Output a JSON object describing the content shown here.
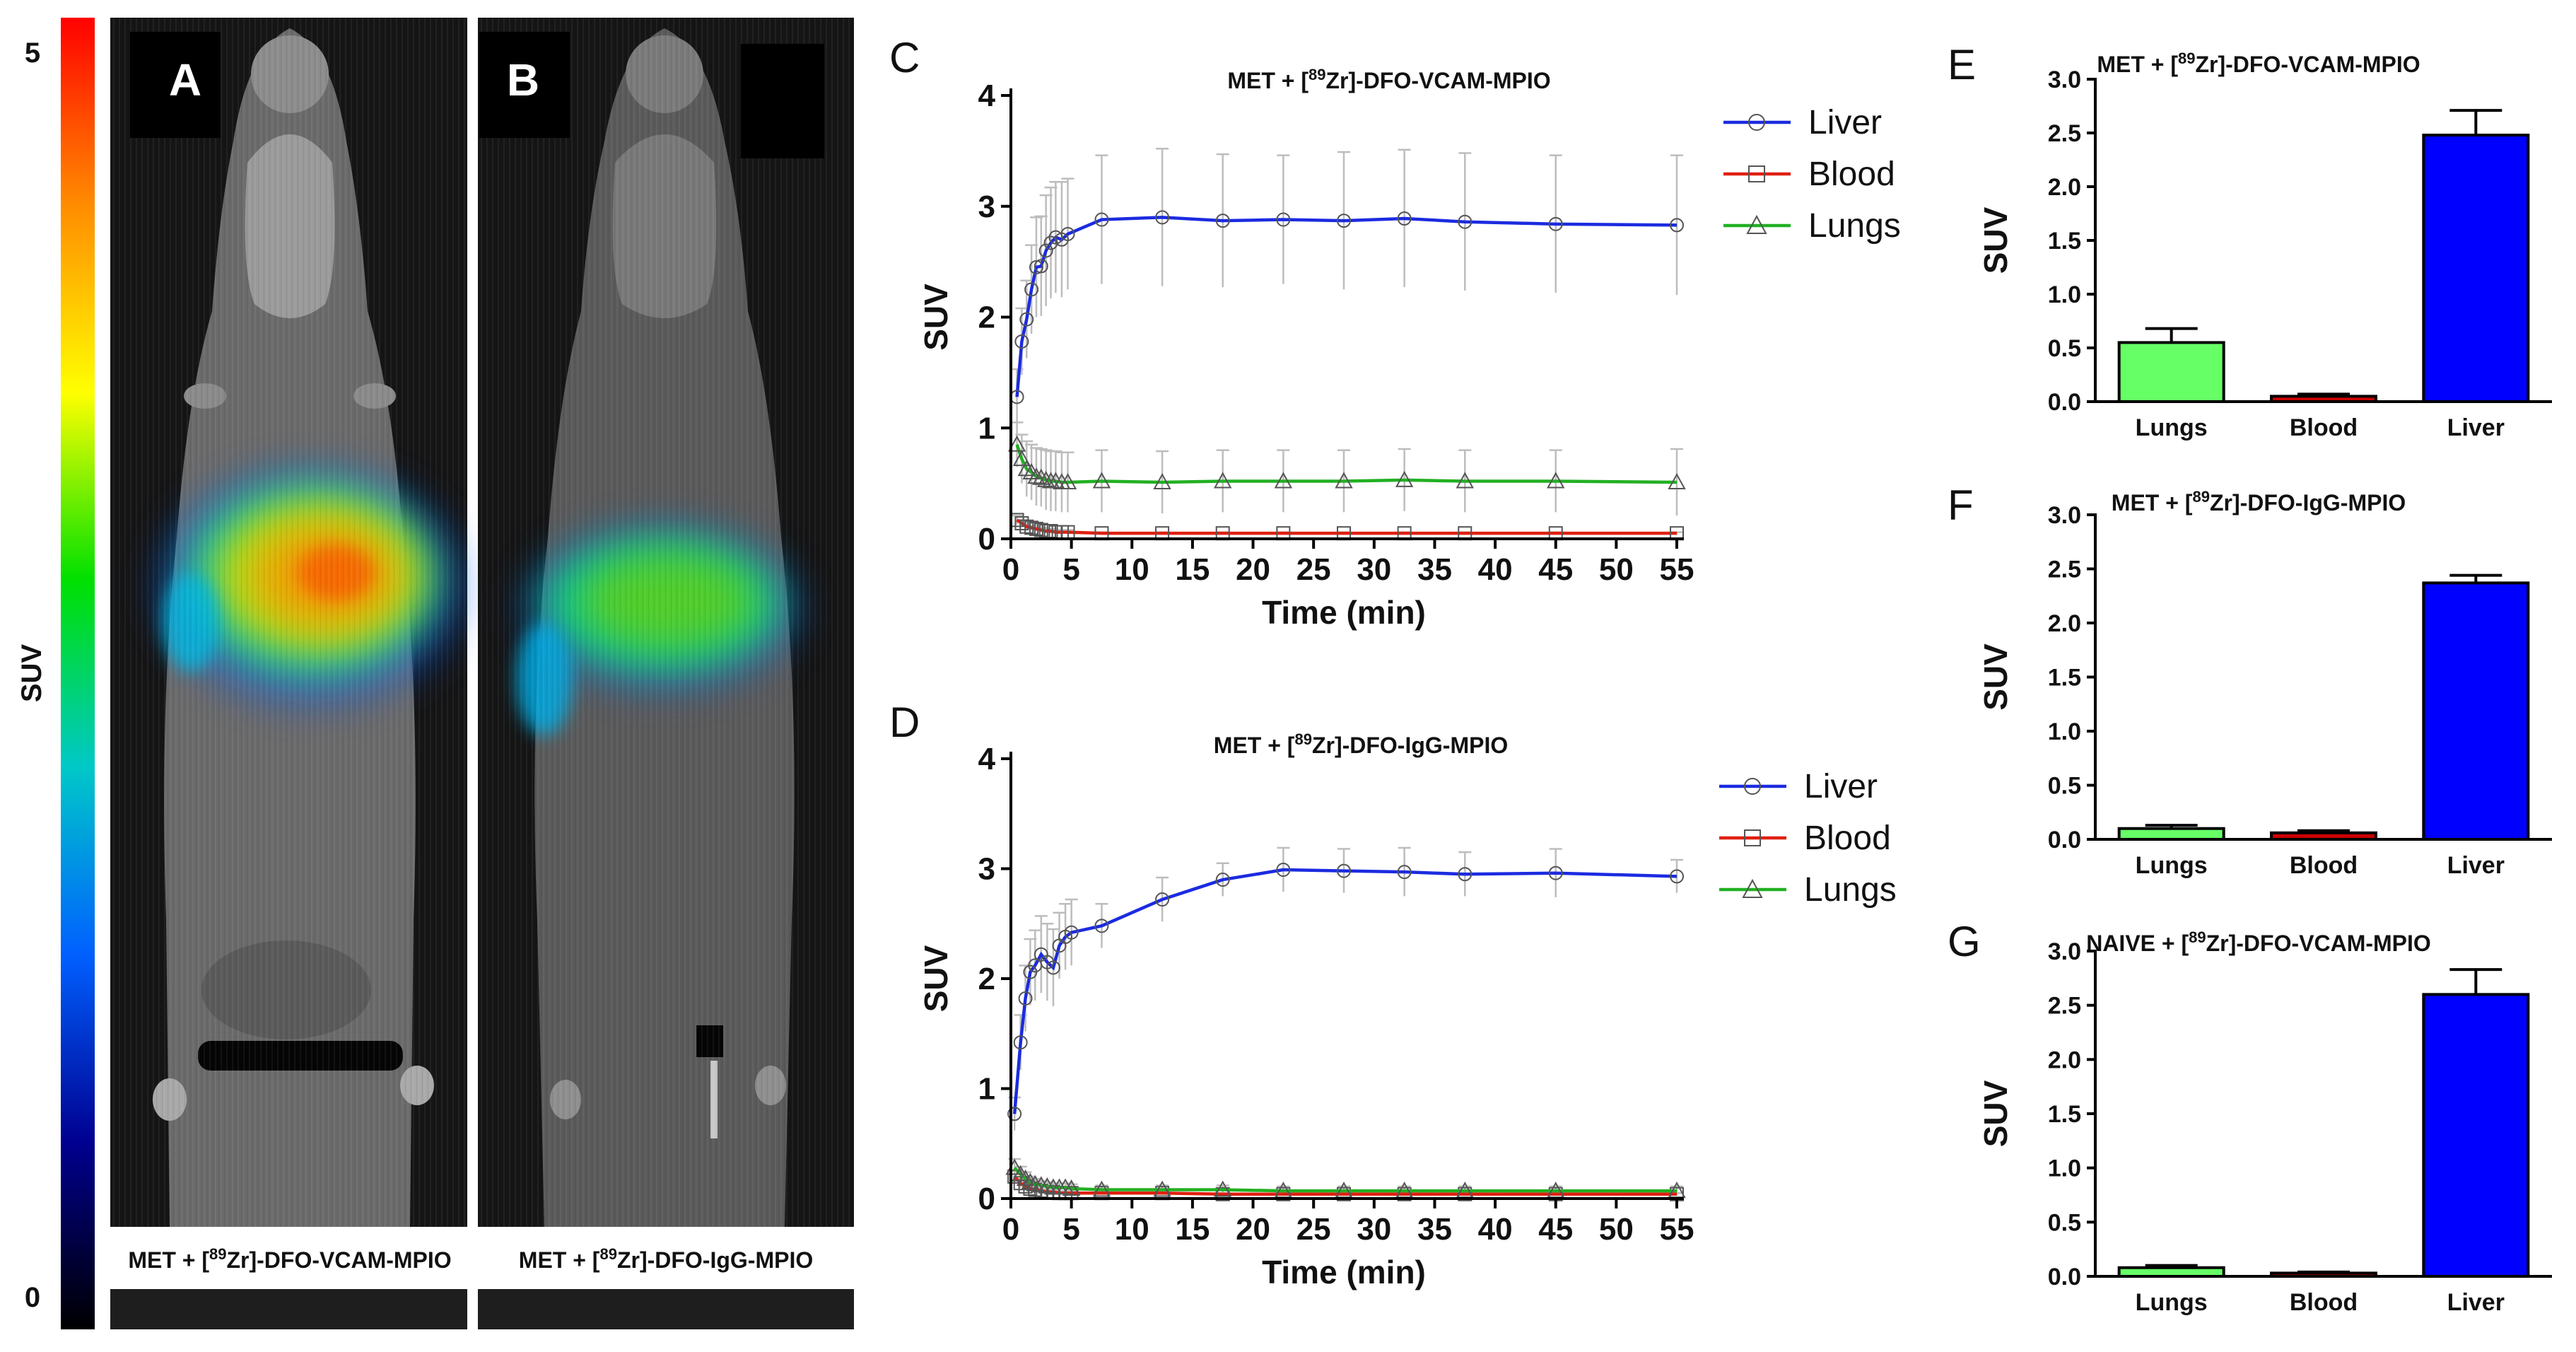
{
  "colorbar": {
    "label": "SUV",
    "max_label": "5",
    "min_label": "0",
    "colors": [
      "#ff0000",
      "#ff8c00",
      "#ffff00",
      "#00e000",
      "#00c8c8",
      "#0060ff",
      "#000090",
      "#000000"
    ]
  },
  "images": [
    {
      "letter": "A",
      "caption_pre": "MET + [",
      "caption_sup": "89",
      "caption_post": "Zr]-DFO-VCAM-MPIO"
    },
    {
      "letter": "B",
      "caption_pre": "MET + [",
      "caption_sup": "89",
      "caption_post": "Zr]-DFO-IgG-MPIO"
    }
  ],
  "colors": {
    "liver": "#1b2be0",
    "blood": "#e02010",
    "lungs": "#22b022",
    "error": "#bdbdbd",
    "bar_lungs": "#66ff66",
    "bar_blood": "#cc0000",
    "bar_liver": "#0000ff"
  },
  "chart_data": [
    {
      "panel": "C",
      "type": "line",
      "title_pre": "MET + [",
      "title_sup": "89",
      "title_post": "Zr]-DFO-VCAM-MPIO",
      "xlabel": "Time (min)",
      "ylabel": "SUV",
      "xlim": [
        0,
        55
      ],
      "ylim": [
        0,
        4
      ],
      "xticks": [
        0,
        5,
        10,
        15,
        20,
        25,
        30,
        35,
        40,
        45,
        50,
        55
      ],
      "yticks": [
        0,
        1,
        2,
        3,
        4
      ],
      "legend_position": "top-right",
      "series": [
        {
          "name": "Liver",
          "key": "liver",
          "marker": "circle",
          "x": [
            0.5,
            0.9,
            1.3,
            1.7,
            2.1,
            2.5,
            2.9,
            3.3,
            3.7,
            4.2,
            4.7,
            7.5,
            12.5,
            17.5,
            22.5,
            27.5,
            32.5,
            37.5,
            45,
            55
          ],
          "y": [
            1.28,
            1.78,
            1.98,
            2.25,
            2.45,
            2.46,
            2.6,
            2.67,
            2.72,
            2.7,
            2.75,
            2.88,
            2.9,
            2.87,
            2.88,
            2.87,
            2.89,
            2.86,
            2.84,
            2.83
          ],
          "err": [
            0.25,
            0.3,
            0.35,
            0.4,
            0.45,
            0.45,
            0.5,
            0.5,
            0.5,
            0.52,
            0.5,
            0.58,
            0.62,
            0.6,
            0.58,
            0.62,
            0.62,
            0.62,
            0.62,
            0.63
          ]
        },
        {
          "name": "Blood",
          "key": "blood",
          "marker": "square",
          "x": [
            0.5,
            0.9,
            1.3,
            1.7,
            2.1,
            2.5,
            2.9,
            3.3,
            3.7,
            4.2,
            4.7,
            7.5,
            12.5,
            17.5,
            22.5,
            27.5,
            32.5,
            37.5,
            45,
            55
          ],
          "y": [
            0.17,
            0.14,
            0.11,
            0.1,
            0.09,
            0.08,
            0.07,
            0.07,
            0.06,
            0.06,
            0.06,
            0.05,
            0.05,
            0.05,
            0.05,
            0.05,
            0.05,
            0.05,
            0.05,
            0.05
          ],
          "err": [
            0.04,
            0.03,
            0.03,
            0.02,
            0.02,
            0.02,
            0.02,
            0.02,
            0.02,
            0.02,
            0.02,
            0.01,
            0.01,
            0.01,
            0.01,
            0.01,
            0.01,
            0.01,
            0.01,
            0.01
          ]
        },
        {
          "name": "Lungs",
          "key": "lungs",
          "marker": "triangle",
          "x": [
            0.5,
            0.9,
            1.3,
            1.7,
            2.1,
            2.5,
            2.9,
            3.3,
            3.7,
            4.2,
            4.7,
            7.5,
            12.5,
            17.5,
            22.5,
            27.5,
            32.5,
            37.5,
            45,
            55
          ],
          "y": [
            0.85,
            0.72,
            0.63,
            0.6,
            0.56,
            0.55,
            0.53,
            0.52,
            0.52,
            0.51,
            0.51,
            0.52,
            0.51,
            0.52,
            0.52,
            0.52,
            0.53,
            0.52,
            0.52,
            0.51
          ],
          "err": [
            0.2,
            0.22,
            0.25,
            0.25,
            0.26,
            0.26,
            0.27,
            0.27,
            0.27,
            0.27,
            0.27,
            0.28,
            0.28,
            0.28,
            0.28,
            0.28,
            0.28,
            0.28,
            0.28,
            0.3
          ]
        }
      ]
    },
    {
      "panel": "D",
      "type": "line",
      "title_pre": "MET + [",
      "title_sup": "89",
      "title_post": "Zr]-DFO-IgG-MPIO",
      "xlabel": "Time (min)",
      "ylabel": "SUV",
      "xlim": [
        0,
        55
      ],
      "ylim": [
        0,
        4
      ],
      "xticks": [
        0,
        5,
        10,
        15,
        20,
        25,
        30,
        35,
        40,
        45,
        50,
        55
      ],
      "yticks": [
        0,
        1,
        2,
        3,
        4
      ],
      "legend_position": "top-right",
      "series": [
        {
          "name": "Liver",
          "key": "liver",
          "marker": "circle",
          "x": [
            0.3,
            0.8,
            1.2,
            1.6,
            2.0,
            2.5,
            3.0,
            3.5,
            4.0,
            4.5,
            5.0,
            7.5,
            12.5,
            17.5,
            22.5,
            27.5,
            32.5,
            37.5,
            45,
            55
          ],
          "y": [
            0.77,
            1.42,
            1.82,
            2.06,
            2.12,
            2.22,
            2.15,
            2.1,
            2.3,
            2.38,
            2.42,
            2.48,
            2.72,
            2.9,
            2.99,
            2.98,
            2.97,
            2.95,
            2.96,
            2.93
          ],
          "err": [
            0.15,
            0.25,
            0.3,
            0.3,
            0.32,
            0.35,
            0.35,
            0.35,
            0.3,
            0.3,
            0.3,
            0.2,
            0.2,
            0.15,
            0.2,
            0.2,
            0.22,
            0.2,
            0.22,
            0.15
          ]
        },
        {
          "name": "Blood",
          "key": "blood",
          "marker": "square",
          "x": [
            0.3,
            0.8,
            1.2,
            1.6,
            2.0,
            2.5,
            3.0,
            3.5,
            4.0,
            4.5,
            5.0,
            7.5,
            12.5,
            17.5,
            22.5,
            27.5,
            32.5,
            37.5,
            45,
            55
          ],
          "y": [
            0.2,
            0.14,
            0.11,
            0.09,
            0.08,
            0.07,
            0.06,
            0.06,
            0.05,
            0.05,
            0.05,
            0.05,
            0.05,
            0.04,
            0.04,
            0.04,
            0.04,
            0.04,
            0.04,
            0.04
          ],
          "err": [
            0.05,
            0.04,
            0.03,
            0.02,
            0.02,
            0.02,
            0.02,
            0.02,
            0.02,
            0.02,
            0.02,
            0.01,
            0.01,
            0.01,
            0.01,
            0.01,
            0.01,
            0.01,
            0.01,
            0.01
          ]
        },
        {
          "name": "Lungs",
          "key": "lungs",
          "marker": "triangle",
          "x": [
            0.3,
            0.8,
            1.2,
            1.6,
            2.0,
            2.5,
            3.0,
            3.5,
            4.0,
            4.5,
            5.0,
            7.5,
            12.5,
            17.5,
            22.5,
            27.5,
            32.5,
            37.5,
            45,
            55
          ],
          "y": [
            0.28,
            0.22,
            0.18,
            0.15,
            0.13,
            0.12,
            0.11,
            0.1,
            0.1,
            0.1,
            0.09,
            0.08,
            0.08,
            0.08,
            0.07,
            0.07,
            0.07,
            0.07,
            0.07,
            0.07
          ],
          "err": [
            0.08,
            0.07,
            0.06,
            0.05,
            0.05,
            0.04,
            0.04,
            0.04,
            0.04,
            0.04,
            0.04,
            0.04,
            0.04,
            0.04,
            0.04,
            0.04,
            0.04,
            0.04,
            0.04,
            0.04
          ]
        }
      ]
    },
    {
      "panel": "E",
      "type": "bar",
      "title_pre": "MET + [",
      "title_sup": "89",
      "title_post": "Zr]-DFO-VCAM-MPIO",
      "ylabel": "SUV",
      "ylim": [
        0,
        3.0
      ],
      "yticks": [
        "0.0",
        "0.5",
        "1.0",
        "1.5",
        "2.0",
        "2.5",
        "3.0"
      ],
      "categories": [
        "Lungs",
        "Blood",
        "Liver"
      ],
      "values": [
        0.55,
        0.05,
        2.48
      ],
      "errors": [
        0.13,
        0.02,
        0.23
      ]
    },
    {
      "panel": "F",
      "type": "bar",
      "title_pre": "MET + [",
      "title_sup": "89",
      "title_post": "Zr]-DFO-IgG-MPIO",
      "ylabel": "SUV",
      "ylim": [
        0,
        3.0
      ],
      "yticks": [
        "0.0",
        "0.5",
        "1.0",
        "1.5",
        "2.0",
        "2.5",
        "3.0"
      ],
      "categories": [
        "Lungs",
        "Blood",
        "Liver"
      ],
      "values": [
        0.1,
        0.06,
        2.37
      ],
      "errors": [
        0.03,
        0.02,
        0.07
      ]
    },
    {
      "panel": "G",
      "type": "bar",
      "title_pre": "NAIVE + [",
      "title_sup": "89",
      "title_post": "Zr]-DFO-VCAM-MPIO",
      "ylabel": "SUV",
      "ylim": [
        0,
        3.0
      ],
      "yticks": [
        "0.0",
        "0.5",
        "1.0",
        "1.5",
        "2.0",
        "2.5",
        "3.0"
      ],
      "categories": [
        "Lungs",
        "Blood",
        "Liver"
      ],
      "values": [
        0.08,
        0.03,
        2.6
      ],
      "errors": [
        0.02,
        0.01,
        0.23
      ]
    }
  ]
}
